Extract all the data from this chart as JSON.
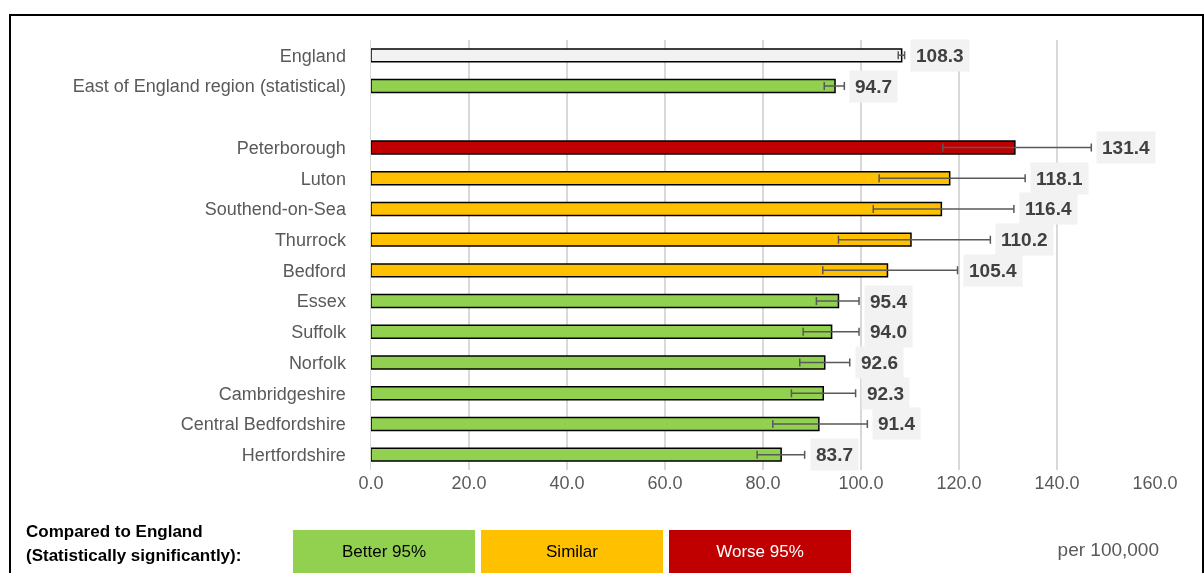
{
  "chart_data": {
    "type": "bar",
    "orientation": "horizontal",
    "categories": [
      "England",
      "East of England region (statistical)",
      null,
      "Peterborough",
      "Luton",
      "Southend-on-Sea",
      "Thurrock",
      "Bedford",
      "Essex",
      "Suffolk",
      "Norfolk",
      "Cambridgeshire",
      "Central Bedfordshire",
      "Hertfordshire"
    ],
    "series": [
      {
        "color": "#f2f2f2",
        "values": [
          108.3,
          null,
          null,
          null,
          null,
          null,
          null,
          null,
          null,
          null,
          null,
          null,
          null,
          null
        ],
        "errors": [
          [
            107.6,
            108.9
          ],
          null,
          null,
          null,
          null,
          null,
          null,
          null,
          null,
          null,
          null,
          null,
          null,
          null
        ]
      },
      {
        "name": "Better 95%",
        "color": "#92d050",
        "values": [
          null,
          94.7,
          null,
          null,
          null,
          null,
          null,
          null,
          95.4,
          94.0,
          92.6,
          92.3,
          91.4,
          83.7
        ],
        "errors": [
          null,
          [
            92.5,
            96.6
          ],
          null,
          null,
          null,
          null,
          null,
          null,
          [
            90.9,
            99.6
          ],
          [
            88.2,
            99.6
          ],
          [
            87.5,
            97.7
          ],
          [
            85.8,
            98.9
          ],
          [
            82.0,
            101.3
          ],
          [
            78.8,
            88.5
          ]
        ]
      },
      {
        "name": "Similar",
        "color": "#ffc000",
        "values": [
          null,
          null,
          null,
          null,
          118.1,
          116.4,
          110.2,
          105.4,
          null,
          null,
          null,
          null,
          null,
          null
        ],
        "errors": [
          null,
          null,
          null,
          null,
          [
            103.7,
            133.5
          ],
          [
            102.5,
            131.2
          ],
          [
            95.4,
            126.4
          ],
          [
            92.2,
            119.7
          ],
          null,
          null,
          null,
          null,
          null,
          null
        ]
      },
      {
        "name": "Worse 95%",
        "color": "#c00000",
        "values": [
          null,
          null,
          null,
          131.4,
          null,
          null,
          null,
          null,
          null,
          null,
          null,
          null,
          null,
          null
        ],
        "errors": [
          null,
          null,
          null,
          [
            116.7,
            147.0
          ],
          null,
          null,
          null,
          null,
          null,
          null,
          null,
          null,
          null,
          null
        ]
      }
    ],
    "value_labels": [
      "108.3",
      "94.7",
      null,
      "131.4",
      "118.1",
      "116.4",
      "110.2",
      "105.4",
      "95.4",
      "94.0",
      "92.6",
      "92.3",
      "91.4",
      "83.7"
    ],
    "xlim": [
      0,
      160
    ],
    "xticks": [
      {
        "value": 0,
        "label": "0.0"
      },
      {
        "value": 20,
        "label": "20.0"
      },
      {
        "value": 40,
        "label": "40.0"
      },
      {
        "value": 60,
        "label": "60.0"
      },
      {
        "value": 80,
        "label": "80.0"
      },
      {
        "value": 100,
        "label": "100.0"
      },
      {
        "value": 120,
        "label": "120.0"
      },
      {
        "value": 140,
        "label": "140.0"
      },
      {
        "value": 160,
        "label": "160.0"
      }
    ],
    "grid": "x",
    "legend": "bottom",
    "legend_title": "Compared to England (Statistically significantly):",
    "xlabel": "per 100,000"
  }
}
